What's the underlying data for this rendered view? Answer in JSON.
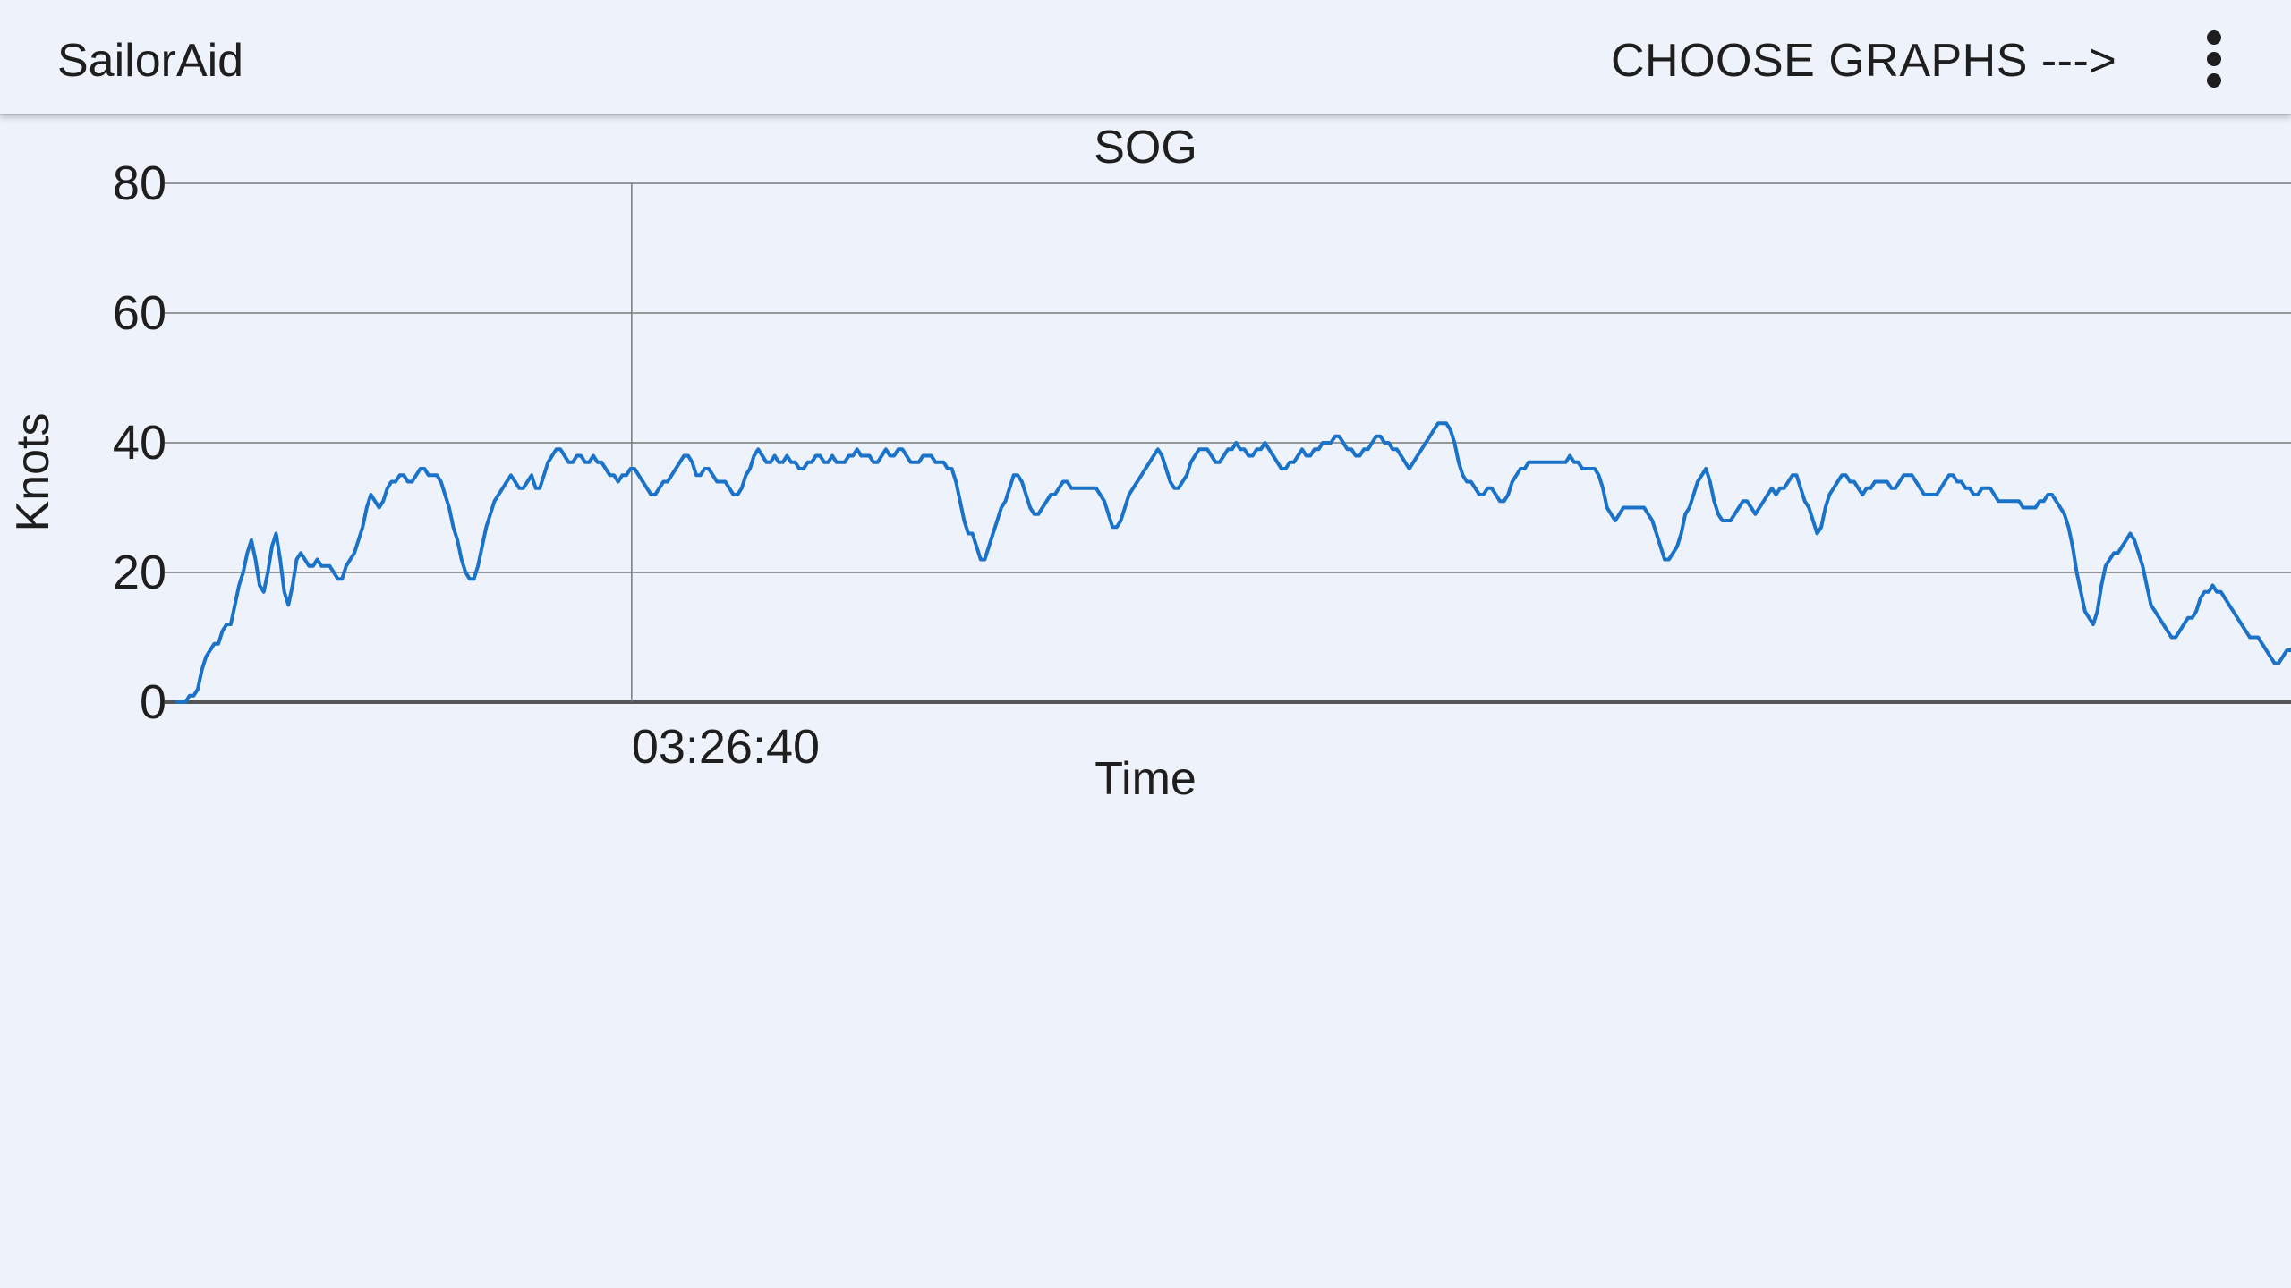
{
  "appbar": {
    "title": "SailorAid",
    "choose_graphs_label": "CHOOSE GRAPHS --->",
    "overflow_icon": "more-vert-icon"
  },
  "colors": {
    "background": "#eef2fa",
    "series_line": "#1a73c8",
    "grid": "#7a7a7a"
  },
  "chart_data": {
    "type": "line",
    "title": "SOG",
    "xlabel": "Time",
    "ylabel": "Knots",
    "ylim": [
      0,
      80
    ],
    "yticks": [
      "0",
      "20",
      "40",
      "60",
      "80"
    ],
    "xticks": [
      {
        "label": "03:26:40",
        "at": 0.215
      }
    ],
    "grid": true,
    "x_domain": [
      0,
      1
    ],
    "series": [
      {
        "values": [
          0,
          0,
          0,
          1,
          1,
          2,
          5,
          7,
          8,
          9,
          9,
          11,
          12,
          12,
          15,
          18,
          20,
          23,
          25,
          22,
          18,
          17,
          20,
          24,
          26,
          22,
          17,
          15,
          18,
          22,
          23,
          22,
          21,
          21,
          22,
          21,
          21,
          21,
          20,
          19,
          19,
          21,
          22,
          23,
          25,
          27,
          30,
          32,
          31,
          30,
          31,
          33,
          34,
          34,
          35,
          35,
          34,
          34,
          35,
          36,
          36,
          35,
          35,
          35,
          34,
          32,
          30,
          27,
          25,
          22,
          20,
          19,
          19,
          21,
          24,
          27,
          29,
          31,
          32,
          33,
          34,
          35,
          34,
          33,
          33,
          34,
          35,
          33,
          33,
          35,
          37,
          38,
          39,
          39,
          38,
          37,
          37,
          38,
          38,
          37,
          37,
          38,
          37,
          37,
          36,
          35,
          35,
          34,
          35,
          35,
          36,
          36,
          35,
          34,
          33,
          32,
          32,
          33,
          34,
          34,
          35,
          36,
          37,
          38,
          38,
          37,
          35,
          35,
          36,
          36,
          35,
          34,
          34,
          34,
          33,
          32,
          32,
          33,
          35,
          36,
          38,
          39,
          38,
          37,
          37,
          38,
          37,
          37,
          38,
          37,
          37,
          36,
          36,
          37,
          37,
          38,
          38,
          37,
          37,
          38,
          37,
          37,
          37,
          38,
          38,
          39,
          38,
          38,
          38,
          37,
          37,
          38,
          39,
          38,
          38,
          39,
          39,
          38,
          37,
          37,
          37,
          38,
          38,
          38,
          37,
          37,
          37,
          36,
          36,
          34,
          31,
          28,
          26,
          26,
          24,
          22,
          22,
          24,
          26,
          28,
          30,
          31,
          33,
          35,
          35,
          34,
          32,
          30,
          29,
          29,
          30,
          31,
          32,
          32,
          33,
          34,
          34,
          33,
          33,
          33,
          33,
          33,
          33,
          33,
          32,
          31,
          29,
          27,
          27,
          28,
          30,
          32,
          33,
          34,
          35,
          36,
          37,
          38,
          39,
          38,
          36,
          34,
          33,
          33,
          34,
          35,
          37,
          38,
          39,
          39,
          39,
          38,
          37,
          37,
          38,
          39,
          39,
          40,
          39,
          39,
          38,
          38,
          39,
          39,
          40,
          39,
          38,
          37,
          36,
          36,
          37,
          37,
          38,
          39,
          38,
          38,
          39,
          39,
          40,
          40,
          40,
          41,
          41,
          40,
          39,
          39,
          38,
          38,
          39,
          39,
          40,
          41,
          41,
          40,
          40,
          39,
          39,
          38,
          37,
          36,
          37,
          38,
          39,
          40,
          41,
          42,
          43,
          43,
          43,
          42,
          40,
          37,
          35,
          34,
          34,
          33,
          32,
          32,
          33,
          33,
          32,
          31,
          31,
          32,
          34,
          35,
          36,
          36,
          37,
          37,
          37,
          37,
          37,
          37,
          37,
          37,
          37,
          37,
          38,
          37,
          37,
          36,
          36,
          36,
          36,
          35,
          33,
          30,
          29,
          28,
          29,
          30,
          30,
          30,
          30,
          30,
          30,
          29,
          28,
          26,
          24,
          22,
          22,
          23,
          24,
          26,
          29,
          30,
          32,
          34,
          35,
          36,
          34,
          31,
          29,
          28,
          28,
          28,
          29,
          30,
          31,
          31,
          30,
          29,
          30,
          31,
          32,
          33,
          32,
          33,
          33,
          34,
          35,
          35,
          33,
          31,
          30,
          28,
          26,
          27,
          30,
          32,
          33,
          34,
          35,
          35,
          34,
          34,
          33,
          32,
          33,
          33,
          34,
          34,
          34,
          34,
          33,
          33,
          34,
          35,
          35,
          35,
          34,
          33,
          32,
          32,
          32,
          32,
          33,
          34,
          35,
          35,
          34,
          34,
          33,
          33,
          32,
          32,
          33,
          33,
          33,
          32,
          31,
          31,
          31,
          31,
          31,
          31,
          30,
          30,
          30,
          30,
          31,
          31,
          32,
          32,
          31,
          30,
          29,
          27,
          24,
          20,
          17,
          14,
          13,
          12,
          14,
          18,
          21,
          22,
          23,
          23,
          24,
          25,
          26,
          25,
          23,
          21,
          18,
          15,
          14,
          13,
          12,
          11,
          10,
          10,
          11,
          12,
          13,
          13,
          14,
          16,
          17,
          17,
          18,
          17,
          17,
          16,
          15,
          14,
          13,
          12,
          11,
          10,
          10,
          10,
          9,
          8,
          7,
          6,
          6,
          7,
          8,
          8
        ]
      }
    ]
  }
}
